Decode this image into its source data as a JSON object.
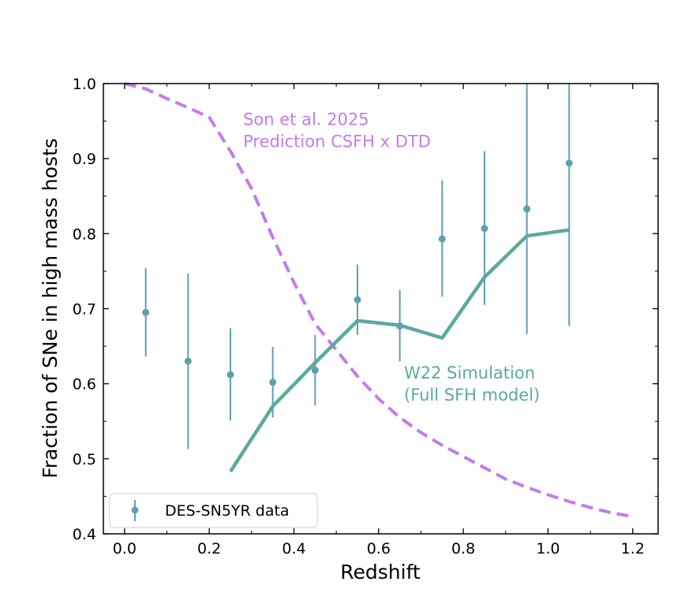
{
  "chart_data": {
    "type": "line",
    "title": "",
    "xlabel": "Redshift",
    "ylabel": "Fraction of SNe in high mass hosts",
    "xlim": [
      -0.05,
      1.26
    ],
    "ylim": [
      0.4,
      1.0
    ],
    "xticks": [
      0.0,
      0.2,
      0.4,
      0.6,
      0.8,
      1.0,
      1.2
    ],
    "xtick_labels": [
      "0.0",
      "0.2",
      "0.4",
      "0.6",
      "0.8",
      "1.0",
      "1.2"
    ],
    "yticks": [
      0.4,
      0.5,
      0.6,
      0.7,
      0.8,
      0.9,
      1.0
    ],
    "ytick_labels": [
      "0.4",
      "0.5",
      "0.6",
      "0.7",
      "0.8",
      "0.9",
      "1.0"
    ],
    "grid": false,
    "legend": {
      "location": "lower-left",
      "entries": [
        "DES-SN5YR data"
      ]
    },
    "series": [
      {
        "name": "Son et al. 2025 Prediction CSFH x DTD",
        "style": "dashed",
        "color": "#c57bea",
        "x": [
          0.0,
          0.05,
          0.1,
          0.15,
          0.2,
          0.25,
          0.3,
          0.35,
          0.4,
          0.45,
          0.5,
          0.55,
          0.6,
          0.65,
          0.7,
          0.75,
          0.8,
          0.85,
          0.9,
          0.95,
          1.0,
          1.05,
          1.1,
          1.15,
          1.2
        ],
        "y": [
          1.0,
          0.993,
          0.98,
          0.968,
          0.955,
          0.91,
          0.86,
          0.795,
          0.735,
          0.68,
          0.645,
          0.61,
          0.58,
          0.555,
          0.535,
          0.518,
          0.503,
          0.488,
          0.473,
          0.462,
          0.452,
          0.443,
          0.435,
          0.428,
          0.423
        ]
      },
      {
        "name": "W22 Simulation (Full SFH model)",
        "style": "solid",
        "color": "#5aaa9e",
        "x": [
          0.25,
          0.35,
          0.45,
          0.55,
          0.65,
          0.75,
          0.85,
          0.95,
          1.05
        ],
        "y": [
          0.483,
          0.57,
          0.628,
          0.684,
          0.678,
          0.661,
          0.742,
          0.797,
          0.805
        ]
      },
      {
        "name": "DES-SN5YR data",
        "style": "errorbar",
        "color": "#5f9fb3",
        "x": [
          0.05,
          0.15,
          0.25,
          0.35,
          0.45,
          0.55,
          0.65,
          0.75,
          0.85,
          0.95,
          1.05
        ],
        "y": [
          0.695,
          0.63,
          0.612,
          0.602,
          0.618,
          0.712,
          0.677,
          0.793,
          0.807,
          0.833,
          0.894
        ],
        "yerr_low": [
          0.059,
          0.117,
          0.061,
          0.047,
          0.047,
          0.047,
          0.047,
          0.077,
          0.102,
          0.167,
          0.217
        ],
        "yerr_high": [
          0.059,
          0.117,
          0.062,
          0.047,
          0.047,
          0.047,
          0.048,
          0.078,
          0.103,
          0.18,
          0.13
        ]
      }
    ],
    "annotations": [
      {
        "lines": [
          "Son et al. 2025",
          "Prediction CSFH x DTD"
        ],
        "x": 0.28,
        "y": 0.945,
        "color": "#c57bea"
      },
      {
        "lines": [
          "W22 Simulation",
          "(Full SFH model)"
        ],
        "x": 0.66,
        "y": 0.607,
        "color": "#5aaa9e"
      }
    ]
  }
}
